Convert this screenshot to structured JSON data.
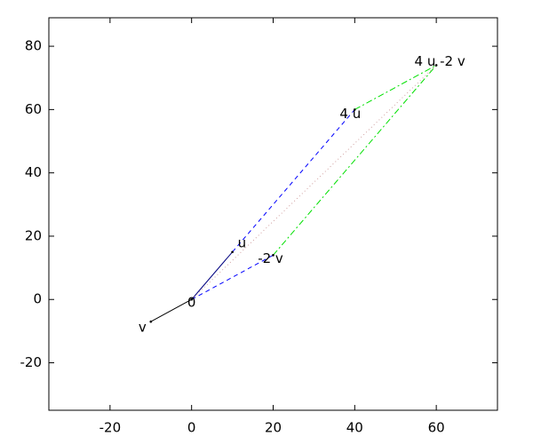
{
  "chart_data": {
    "type": "vector",
    "xlim": [
      -35,
      75
    ],
    "ylim": [
      -35,
      89
    ],
    "xticks": [
      -20,
      0,
      20,
      40,
      60
    ],
    "yticks": [
      -20,
      0,
      20,
      40,
      60,
      80
    ],
    "points": [
      {
        "label": "0",
        "x": 0,
        "y": 0
      },
      {
        "label": "u",
        "x": 10,
        "y": 15
      },
      {
        "label": "v",
        "x": -10,
        "y": -7
      },
      {
        "label": "4 u",
        "x": 40,
        "y": 60
      },
      {
        "label": "-2 v",
        "x": 20,
        "y": 14
      },
      {
        "label": "4 u -2 v",
        "x": 60,
        "y": 74
      }
    ],
    "segments": [
      {
        "from": 0,
        "to": 1,
        "color": "#000080",
        "style": "solid"
      },
      {
        "from": 0,
        "to": 2,
        "color": "#000000",
        "style": "solid"
      },
      {
        "from": 0,
        "to": 4,
        "color": "#0000ff",
        "style": "dashed"
      },
      {
        "from": 1,
        "to": 3,
        "color": "#0000ff",
        "style": "dashed"
      },
      {
        "from": 3,
        "to": 5,
        "color": "#00e000",
        "style": "dashdot"
      },
      {
        "from": 4,
        "to": 5,
        "color": "#00e000",
        "style": "dashdot"
      },
      {
        "from": 0,
        "to": 5,
        "color": "#d0a0a0",
        "style": "dotted"
      }
    ]
  }
}
